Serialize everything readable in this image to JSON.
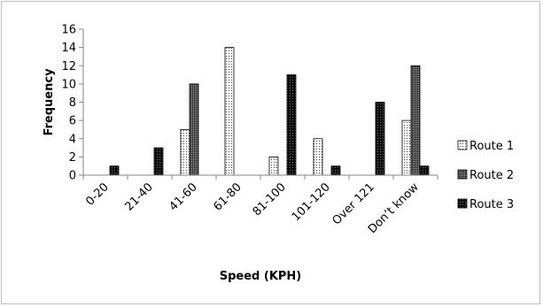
{
  "chart_data": {
    "type": "bar",
    "title": "",
    "xlabel": "Speed (KPH)",
    "ylabel": "Frequency",
    "ylim": [
      0,
      16
    ],
    "yticks": [
      0,
      2,
      4,
      6,
      8,
      10,
      12,
      14,
      16
    ],
    "grid": false,
    "legend_position": "right",
    "categories": [
      "0-20",
      "21-40",
      "41-60",
      "61-80",
      "81-100",
      "101-120",
      "Over 121",
      "Don’t know"
    ],
    "series": [
      {
        "name": "Route 1",
        "values": [
          0,
          0,
          5,
          14,
          2,
          4,
          0,
          6
        ],
        "pattern": "dotted",
        "color": "#ffffff"
      },
      {
        "name": "Route 2",
        "values": [
          0,
          0,
          10,
          0,
          0,
          0,
          0,
          12
        ],
        "pattern": "dense-dots",
        "color": "#555555"
      },
      {
        "name": "Route 3",
        "values": [
          1,
          3,
          0,
          0,
          11,
          1,
          8,
          1
        ],
        "pattern": "dark",
        "color": "#111111"
      }
    ]
  }
}
